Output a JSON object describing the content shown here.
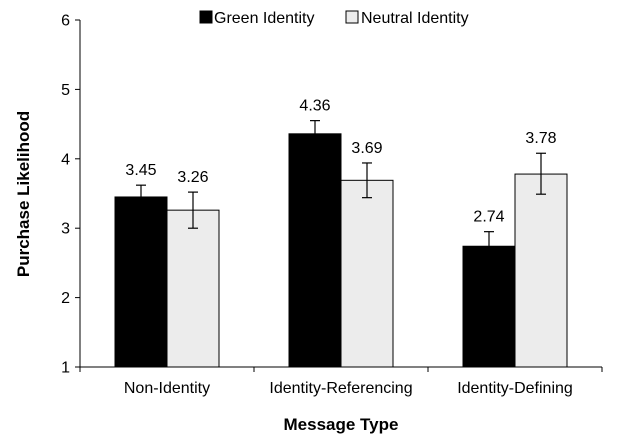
{
  "chart_data": {
    "type": "bar",
    "categories": [
      "Non-Identity",
      "Identity-Referencing",
      "Identity-Defining"
    ],
    "series": [
      {
        "name": "Green Identity",
        "values": [
          3.45,
          4.36,
          2.74
        ],
        "error_low": [
          3.28,
          4.17,
          2.54
        ],
        "error_high": [
          3.62,
          4.55,
          2.95
        ],
        "color": "#000000"
      },
      {
        "name": "Neutral Identity",
        "values": [
          3.26,
          3.69,
          3.78
        ],
        "error_low": [
          3.0,
          3.44,
          3.49
        ],
        "error_high": [
          3.52,
          3.94,
          4.08
        ],
        "color": "#ececec"
      }
    ],
    "data_labels": [
      [
        "3.45",
        "4.36",
        "2.74"
      ],
      [
        "3.26",
        "3.69",
        "3.78"
      ]
    ],
    "xlabel": "Message Type",
    "ylabel": "Purchase Likelihood",
    "ylim": [
      1,
      6
    ],
    "yticks": [
      "1",
      "2",
      "3",
      "4",
      "5",
      "6"
    ],
    "grid": false,
    "legend_position": "top"
  }
}
